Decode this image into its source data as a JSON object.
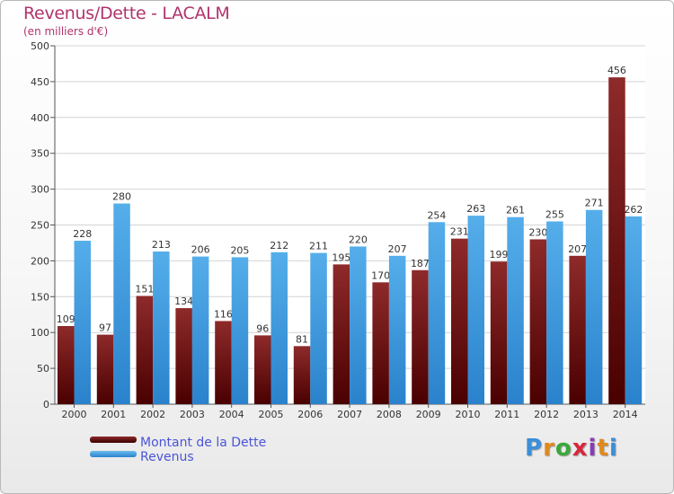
{
  "chart_data": {
    "type": "bar",
    "title": "Revenus/Dette - LACALM",
    "subtitle": "(en milliers d'€)",
    "categories": [
      "2000",
      "2001",
      "2002",
      "2003",
      "2004",
      "2005",
      "2006",
      "2007",
      "2008",
      "2009",
      "2010",
      "2011",
      "2012",
      "2013",
      "2014"
    ],
    "series": [
      {
        "name": "Montant de la Dette",
        "color": "#7a1414",
        "values": [
          109,
          97,
          151,
          134,
          116,
          96,
          81,
          195,
          170,
          187,
          231,
          199,
          230,
          207,
          456
        ]
      },
      {
        "name": "Revenus",
        "color": "#3d9ae0",
        "values": [
          228,
          280,
          213,
          206,
          205,
          212,
          211,
          220,
          207,
          254,
          263,
          261,
          255,
          271,
          262
        ]
      }
    ],
    "y_ticks": [
      "0",
      "50",
      "100",
      "150",
      "200",
      "250",
      "300",
      "350",
      "400",
      "450",
      "500"
    ],
    "ylim": [
      0,
      500
    ],
    "grid": true,
    "legend_position": "bottom-left"
  },
  "logo_text": "Proxiti"
}
